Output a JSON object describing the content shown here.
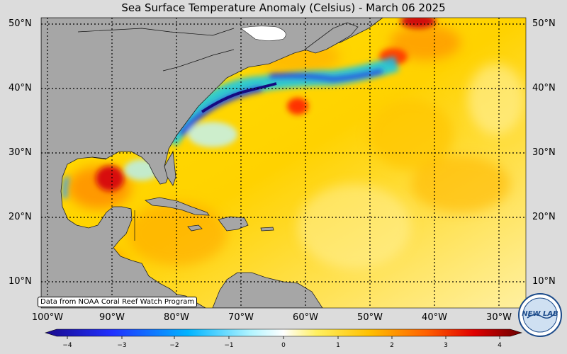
{
  "title": "Sea Surface Temperature Anomaly (Celsius) - March 06 2025",
  "credit": "Data from NOAA Coral Reef Watch Program",
  "logo_text": "NEW LAB",
  "latitude_labels": [
    "50°N",
    "40°N",
    "30°N",
    "20°N",
    "10°N"
  ],
  "longitude_labels": [
    "100°W",
    "90°W",
    "80°W",
    "70°W",
    "60°W",
    "50°W",
    "40°W",
    "30°W"
  ],
  "colorbar": {
    "ticks": [
      "−4",
      "−3",
      "−2",
      "−1",
      "0",
      "1",
      "2",
      "3",
      "4"
    ],
    "min": -4,
    "max": 4
  },
  "colors": {
    "land": "#a6a6a6",
    "background": "#dcdcdc",
    "scale": [
      "#1a0a8c",
      "#0050ff",
      "#00c8ff",
      "#ffffff",
      "#ffe600",
      "#ff9a00",
      "#e00000",
      "#7a0000"
    ]
  }
}
